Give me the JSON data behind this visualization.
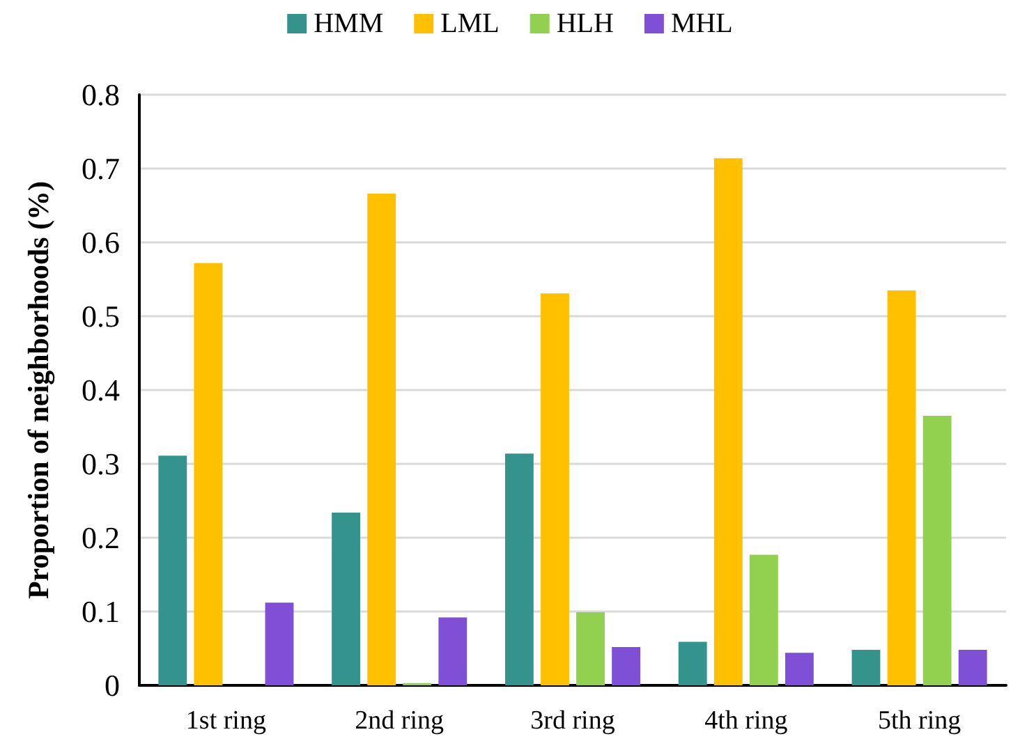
{
  "chart_data": {
    "type": "bar",
    "ylabel": "Proportion of neighborhoods (%)",
    "categories": [
      "1st ring",
      "2nd ring",
      "3rd ring",
      "4th ring",
      "5th ring"
    ],
    "series": [
      {
        "name": "HMM",
        "color": "#35938e",
        "values": [
          0.311,
          0.234,
          0.314,
          0.059,
          0.048
        ]
      },
      {
        "name": "LML",
        "color": "#ffc000",
        "values": [
          0.572,
          0.666,
          0.531,
          0.714,
          0.535
        ]
      },
      {
        "name": "HLH",
        "color": "#92d050",
        "values": [
          0,
          0.003,
          0.099,
          0.177,
          0.365
        ]
      },
      {
        "name": "MHL",
        "color": "#7f4fd6",
        "values": [
          0.112,
          0.092,
          0.052,
          0.044,
          0.048
        ]
      }
    ],
    "ylim": [
      0,
      0.8
    ],
    "yticks": [
      0,
      0.1,
      0.2,
      0.3,
      0.4,
      0.5,
      0.6,
      0.7,
      0.8
    ],
    "grid": "y",
    "legend": "top"
  }
}
